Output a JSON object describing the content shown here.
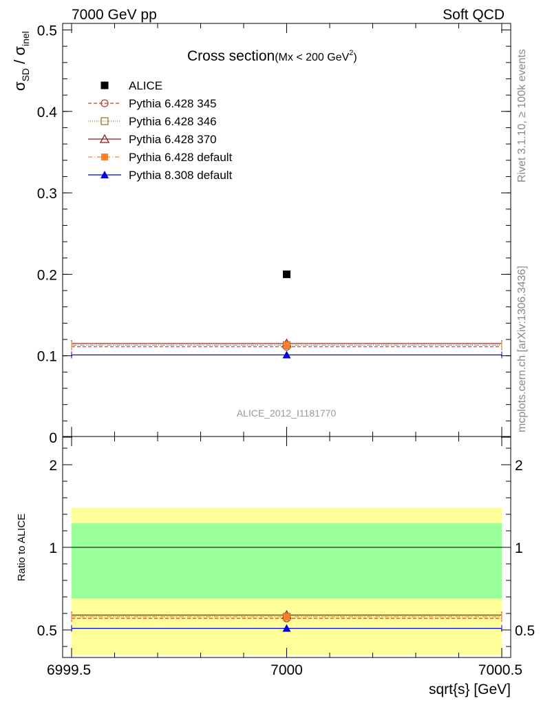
{
  "header": {
    "left": "7000 GeV pp",
    "right": "Soft QCD"
  },
  "side_labels": {
    "rivet": "Rivet 3.1.10, ≥ 100k events",
    "mcplots": "mcplots.cern.ch [arXiv:1306.3436]"
  },
  "chart_data": {
    "type": "scatter",
    "title": "Cross section",
    "title_sub_prefix": "(Mx < 200 GeV",
    "title_sub_sup": "2",
    "title_sub_suffix": ")",
    "watermark": "ALICE_2012_I1181770",
    "xlabel": "sqrt{s} [GeV]",
    "xlim": [
      6999.5,
      7000.5
    ],
    "x_ticks": [
      "6999.5",
      "7000",
      "7000.5"
    ],
    "ylabel_main": "σ",
    "ylabel_sub1": "SD",
    "ylabel_mid": " / σ",
    "ylabel_sub2": "inel",
    "ylim": [
      0,
      0.5
    ],
    "y_ticks": [
      "0",
      "0.1",
      "0.2",
      "0.3",
      "0.4",
      "0.5"
    ],
    "ratio_ylabel": "Ratio to ALICE",
    "ratio_ylim": [
      0.35,
      2.3
    ],
    "ratio_y_ticks": [
      "0.5",
      "1",
      "2"
    ],
    "ratio_bands": {
      "yellow": [
        0.35,
        1.48
      ],
      "green": [
        0.69,
        1.29
      ]
    },
    "legend_placement": "top-left",
    "series": [
      {
        "name": "ALICE",
        "x": [
          7000
        ],
        "y": [
          0.2
        ],
        "marker": "square-filled",
        "color": "#000000"
      },
      {
        "name": "Pythia 6.428 345",
        "x": [
          7000
        ],
        "y": [
          0.111
        ],
        "ratio": [
          0.57
        ],
        "marker": "circle-open",
        "color": "#c0392b",
        "dash": "5,3"
      },
      {
        "name": "Pythia 6.428 346",
        "x": [
          7000
        ],
        "y": [
          0.113
        ],
        "ratio": [
          0.58
        ],
        "marker": "square-open",
        "color": "#9a7a2a",
        "dash": "1,2"
      },
      {
        "name": "Pythia 6.428 370",
        "x": [
          7000
        ],
        "y": [
          0.115
        ],
        "ratio": [
          0.59
        ],
        "marker": "triangle-open",
        "color": "#8b1a1a",
        "dash": ""
      },
      {
        "name": "Pythia 6.428 default",
        "x": [
          7000
        ],
        "y": [
          0.113
        ],
        "ratio": [
          0.58
        ],
        "marker": "square-filled",
        "color": "#ff7f2a",
        "dash": "6,3,1,3"
      },
      {
        "name": "Pythia 8.308 default",
        "x": [
          7000
        ],
        "y": [
          0.101
        ],
        "ratio": [
          0.51
        ],
        "marker": "triangle-filled",
        "color": "#0000e0",
        "dash": ""
      }
    ]
  }
}
